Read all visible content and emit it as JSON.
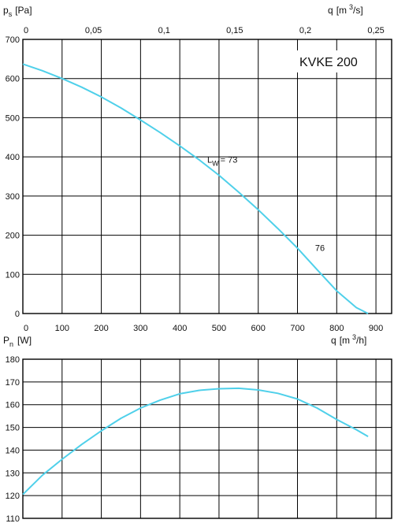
{
  "colors": {
    "curve": "#4fd0ea",
    "grid": "#000000",
    "text": "#111111"
  },
  "chart_data": [
    {
      "type": "line",
      "name": "pressure-chart",
      "model_label": "KVKE 200",
      "ylabel_main": "p",
      "ylabel_sub": "s",
      "ylabel_unit": "[Pa]",
      "top_xlabel_main": "q",
      "top_xlabel_unit": "[m",
      "top_xlabel_exp": "3",
      "top_xlabel_tail": "/s]",
      "xlim": [
        0,
        940
      ],
      "ylim": [
        0,
        700
      ],
      "x_ticks": [
        0,
        100,
        200,
        300,
        400,
        500,
        600,
        700,
        800,
        900
      ],
      "x_tick_labels": [
        "0",
        "100",
        "200",
        "300",
        "400",
        "500",
        "600",
        "700",
        "800",
        "900"
      ],
      "y_ticks": [
        0,
        100,
        200,
        300,
        400,
        500,
        600,
        700
      ],
      "y_tick_labels": [
        "0",
        "100",
        "200",
        "300",
        "400",
        "500",
        "600",
        "700"
      ],
      "top_ticks": [
        0,
        0.05,
        0.1,
        0.15,
        0.2,
        0.25
      ],
      "top_tick_labels": [
        "0",
        "0,05",
        "0,1",
        "0,15",
        "0,2",
        "0,25"
      ],
      "grid": true,
      "series": [
        {
          "x": [
            0,
            50,
            100,
            150,
            200,
            250,
            300,
            350,
            400,
            450,
            500,
            550,
            600,
            650,
            700,
            750,
            800,
            850,
            880
          ],
          "y": [
            637,
            620,
            600,
            578,
            553,
            525,
            494,
            462,
            428,
            392,
            353,
            310,
            265,
            217,
            167,
            112,
            58,
            15,
            0
          ]
        }
      ],
      "annotations": [
        {
          "main": "L",
          "sub": "W",
          "text": "= 73",
          "x": 470,
          "y": 385
        },
        {
          "main": "",
          "sub": "",
          "text": "76",
          "x": 745,
          "y": 160
        }
      ]
    },
    {
      "type": "line",
      "name": "power-chart",
      "ylabel_main": "P",
      "ylabel_sub": "n",
      "ylabel_unit": "[W]",
      "xlabel_main": "q",
      "xlabel_unit": "[m",
      "xlabel_exp": "3",
      "xlabel_tail": "/h]",
      "xlim": [
        0,
        940
      ],
      "ylim": [
        110,
        180
      ],
      "x_ticks": [
        0,
        100,
        200,
        300,
        400,
        500,
        600,
        700,
        800,
        900
      ],
      "y_ticks": [
        110,
        120,
        130,
        140,
        150,
        160,
        170,
        180
      ],
      "y_tick_labels": [
        "110",
        "120",
        "130",
        "140",
        "150",
        "160",
        "170",
        "180"
      ],
      "grid": true,
      "series": [
        {
          "x": [
            0,
            50,
            100,
            150,
            200,
            250,
            300,
            350,
            400,
            450,
            500,
            550,
            600,
            650,
            700,
            750,
            800,
            850,
            880
          ],
          "y": [
            120.5,
            129,
            136,
            142.5,
            148.5,
            154,
            158.5,
            162,
            164.8,
            166.3,
            167,
            167.2,
            166.5,
            165,
            162.5,
            158.5,
            153.5,
            149,
            146
          ]
        }
      ]
    }
  ]
}
